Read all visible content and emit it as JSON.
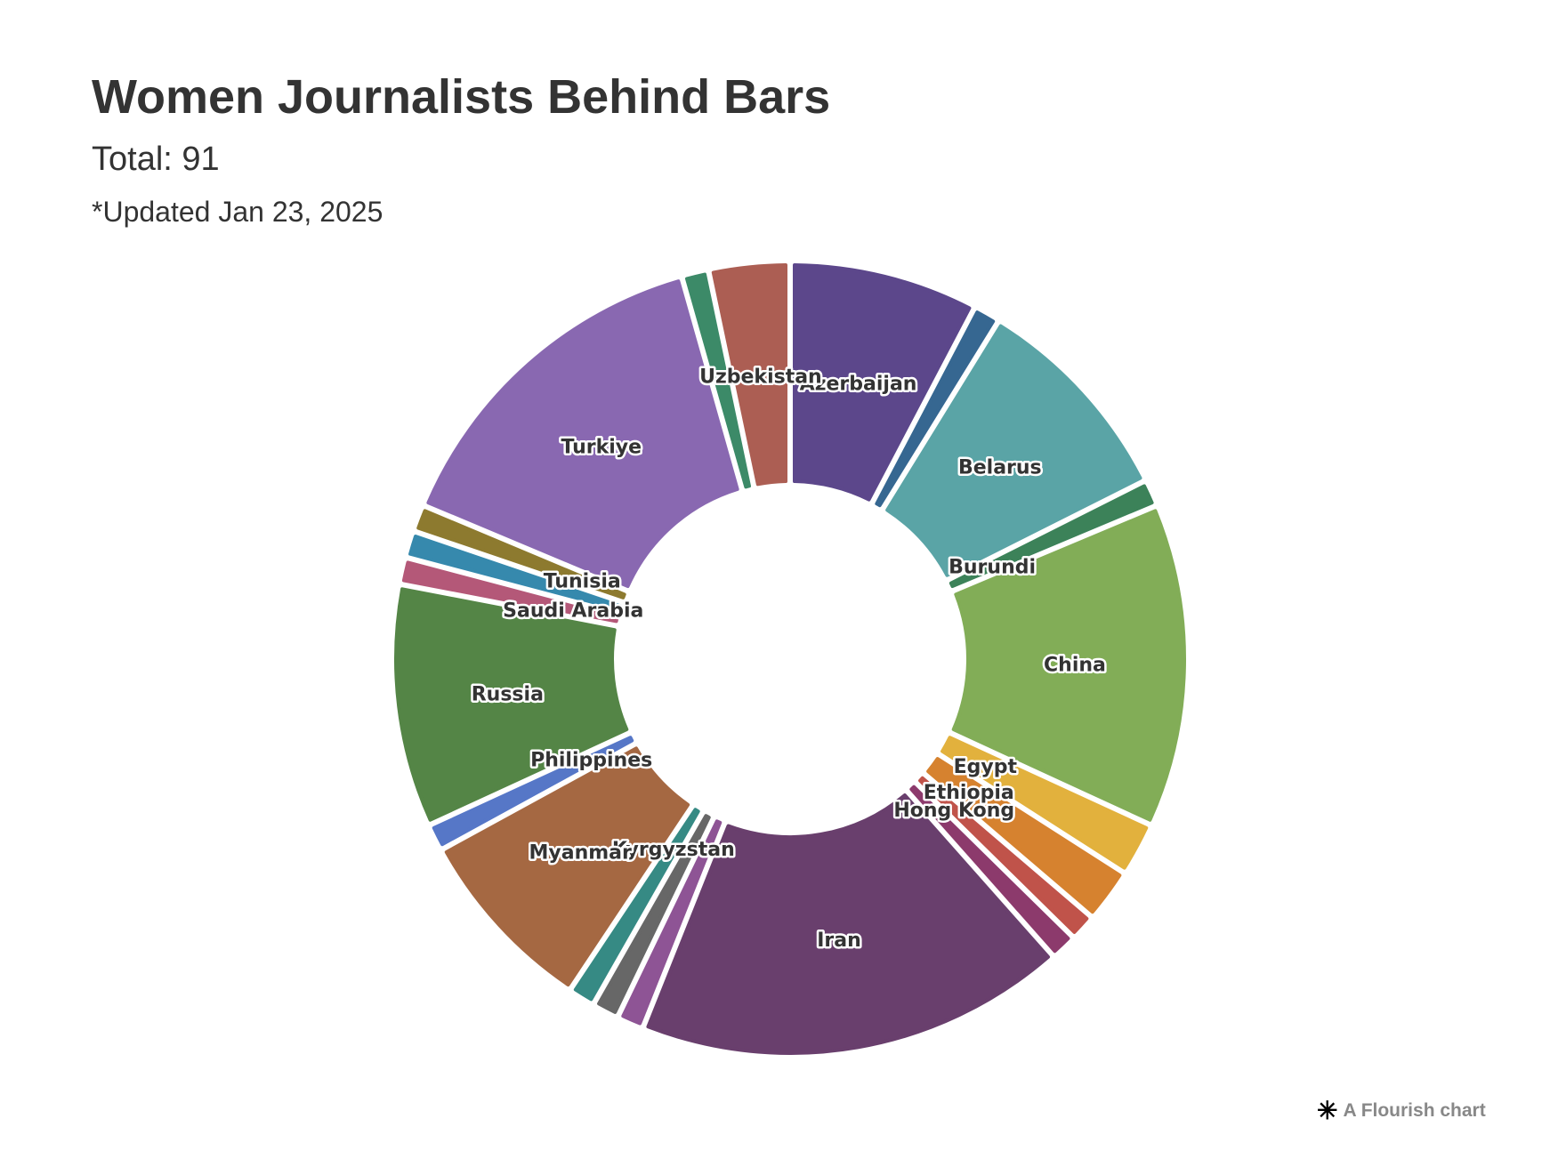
{
  "chart_data": {
    "type": "pie",
    "variant": "donut",
    "title": "Women Journalists Behind Bars",
    "subtitle": "Total: 91",
    "note": "*Updated Jan 23, 2025",
    "start": "top",
    "direction": "clockwise",
    "slices": [
      {
        "label": "Azerbaijan",
        "value": 7,
        "color": "#5c478b"
      },
      {
        "label": null,
        "value": 1,
        "color": "#366791"
      },
      {
        "label": "Belarus",
        "value": 8,
        "color": "#5aa4a6"
      },
      {
        "label": "Burundi",
        "value": 1,
        "color": "#3c8259"
      },
      {
        "label": "China",
        "value": 12,
        "color": "#82ad57"
      },
      {
        "label": "Egypt",
        "value": 2,
        "color": "#e2b13d"
      },
      {
        "label": "Ethiopia",
        "value": 2,
        "color": "#d6822f"
      },
      {
        "label": "Hong Kong",
        "value": 1,
        "color": "#c0534a"
      },
      {
        "label": null,
        "value": 1,
        "color": "#8c3a6c"
      },
      {
        "label": "Iran",
        "value": 16,
        "color": "#693f6d"
      },
      {
        "label": null,
        "value": 1,
        "color": "#8e5495"
      },
      {
        "label": null,
        "value": 1,
        "color": "#676767"
      },
      {
        "label": "Kyrgyzstan",
        "value": 1,
        "color": "#368a84"
      },
      {
        "label": "Myanmar",
        "value": 7,
        "color": "#a56842"
      },
      {
        "label": "Philippines",
        "value": 1,
        "color": "#5677c7"
      },
      {
        "label": "Russia",
        "value": 9,
        "color": "#548546"
      },
      {
        "label": "Saudi Arabia",
        "value": 1,
        "color": "#b45878"
      },
      {
        "label": null,
        "value": 1,
        "color": "#3689ad"
      },
      {
        "label": "Tunisia",
        "value": 1,
        "color": "#8d7a2f"
      },
      {
        "label": "Turkiye",
        "value": 13,
        "color": "#8968b1"
      },
      {
        "label": null,
        "value": 1,
        "color": "#3c8a68"
      },
      {
        "label": "Uzbekistan",
        "value": 3,
        "color": "#ac5e53"
      }
    ]
  },
  "credit": {
    "icon": "flourish-asterisk-icon",
    "text": "A Flourish chart"
  }
}
